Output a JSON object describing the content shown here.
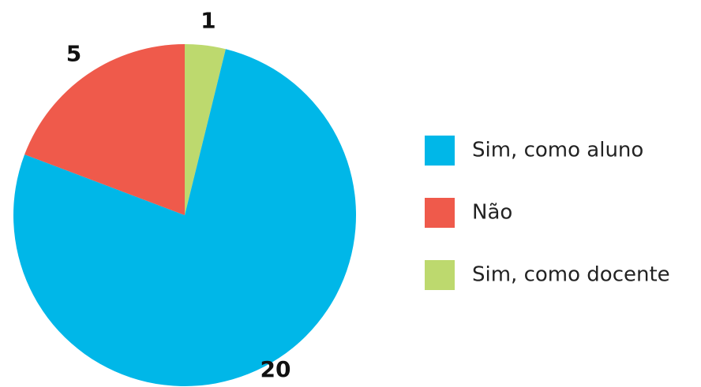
{
  "chart_data": {
    "type": "pie",
    "categories": [
      "Sim, como aluno",
      "Não",
      "Sim, como docente"
    ],
    "values": [
      20,
      5,
      1
    ],
    "colors": [
      "#00b7e8",
      "#ef5a4b",
      "#bdd96e"
    ]
  }
}
